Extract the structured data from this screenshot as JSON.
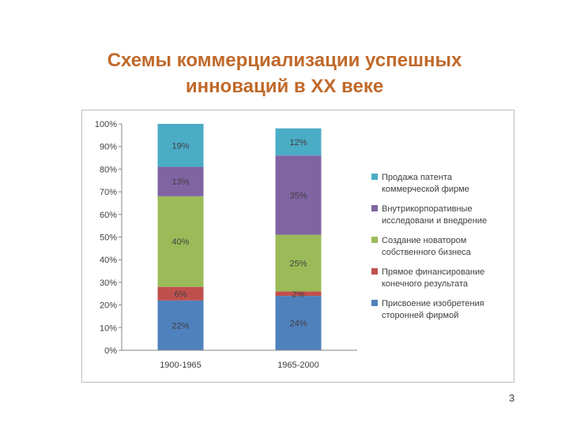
{
  "slide": {
    "title_line1": "Схемы коммерциализации успешных",
    "title_line2": "инноваций в XX веке",
    "page_number": "3"
  },
  "chart_data": {
    "type": "bar",
    "stacked": true,
    "percent": true,
    "categories": [
      "1900-1965",
      "1965-2000"
    ],
    "ylim": [
      0,
      100
    ],
    "yticks": [
      "0%",
      "10%",
      "20%",
      "30%",
      "40%",
      "50%",
      "60%",
      "70%",
      "80%",
      "90%",
      "100%"
    ],
    "legend_position": "right",
    "series": [
      {
        "name": "Присвоение изобретения сторонней фирмой",
        "legend_lines": [
          "Присвоение изобретения",
          "сторонней фирмой"
        ],
        "values": [
          22,
          24
        ],
        "labels": [
          "22%",
          "24%"
        ],
        "color": "#4f81bd"
      },
      {
        "name": "Прямое финансирование конечного результата",
        "legend_lines": [
          "Прямое финансирование",
          "конечного результата"
        ],
        "values": [
          6,
          2
        ],
        "labels": [
          "6%",
          "2%"
        ],
        "color": "#c0504d"
      },
      {
        "name": "Создание новатором собственного бизнеса",
        "legend_lines": [
          "Создание новатором",
          "собственного бизнеса"
        ],
        "values": [
          40,
          25
        ],
        "labels": [
          "40%",
          "25%"
        ],
        "color": "#9bbb59"
      },
      {
        "name": "Внутрикорпоративные исследовани и внедрение",
        "legend_lines": [
          "Внутрикорпоративные",
          "исследовани и внедрение"
        ],
        "values": [
          13,
          35
        ],
        "labels": [
          "13%",
          "35%"
        ],
        "color": "#8064a2"
      },
      {
        "name": "Продажа патента коммерческой фирме",
        "legend_lines": [
          "Продажа патента",
          "коммерческой фирме"
        ],
        "values": [
          19,
          12
        ],
        "labels": [
          "19%",
          "12%"
        ],
        "color": "#4bacc6"
      }
    ]
  }
}
